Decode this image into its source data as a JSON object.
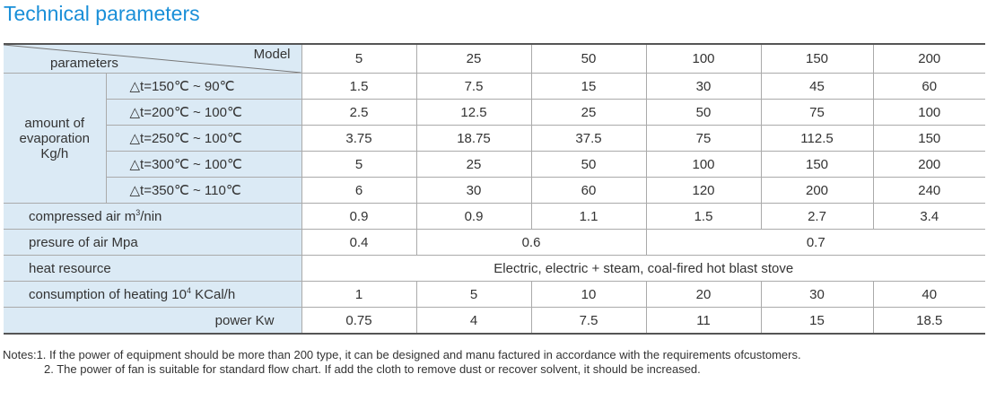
{
  "title": "Technical parameters",
  "header": {
    "model_label": "Model",
    "params_label": "parameters"
  },
  "models": [
    "5",
    "25",
    "50",
    "100",
    "150",
    "200"
  ],
  "evaporation": {
    "group_label": [
      "amount of",
      "evaporation",
      "Kg/h"
    ],
    "rows": [
      {
        "label": "△t=150℃ ~ 90℃",
        "values": [
          "1.5",
          "7.5",
          "15",
          "30",
          "45",
          "60"
        ]
      },
      {
        "label": "△t=200℃ ~ 100℃",
        "values": [
          "2.5",
          "12.5",
          "25",
          "50",
          "75",
          "100"
        ]
      },
      {
        "label": "△t=250℃ ~ 100℃",
        "values": [
          "3.75",
          "18.75",
          "37.5",
          "75",
          "112.5",
          "150"
        ]
      },
      {
        "label": "△t=300℃ ~ 100℃",
        "values": [
          "5",
          "25",
          "50",
          "100",
          "150",
          "200"
        ]
      },
      {
        "label": "△t=350℃ ~ 110℃",
        "values": [
          "6",
          "30",
          "60",
          "120",
          "200",
          "240"
        ]
      }
    ]
  },
  "compressed_air": {
    "label_pre": "compressed air m",
    "label_sup": "3",
    "label_post": "/nin",
    "values": [
      "0.9",
      "0.9",
      "1.1",
      "1.5",
      "2.7",
      "3.4"
    ]
  },
  "air_pressure": {
    "label": "presure of air Mpa",
    "values": [
      "0.4",
      "0.6",
      "0.7"
    ]
  },
  "heat_resource": {
    "label": "heat resource",
    "value": "Electric, electric + steam, coal-fired hot blast stove"
  },
  "heating_consumption": {
    "label_pre": "consumption of heating 10",
    "label_sup": "4",
    "label_post": " KCal/h",
    "values": [
      "1",
      "5",
      "10",
      "20",
      "30",
      "40"
    ]
  },
  "power": {
    "label": "power Kw",
    "values": [
      "0.75",
      "4",
      "7.5",
      "11",
      "15",
      "18.5"
    ]
  },
  "notes": {
    "line1": "Notes:1. If the power of equipment should be more than 200 type, it can be designed and manu factured in accordance with the requirements ofcustomers.",
    "line2": "2. The power of fan is suitable for standard flow chart. If add the cloth to remove dust or recover solvent, it should be increased."
  }
}
